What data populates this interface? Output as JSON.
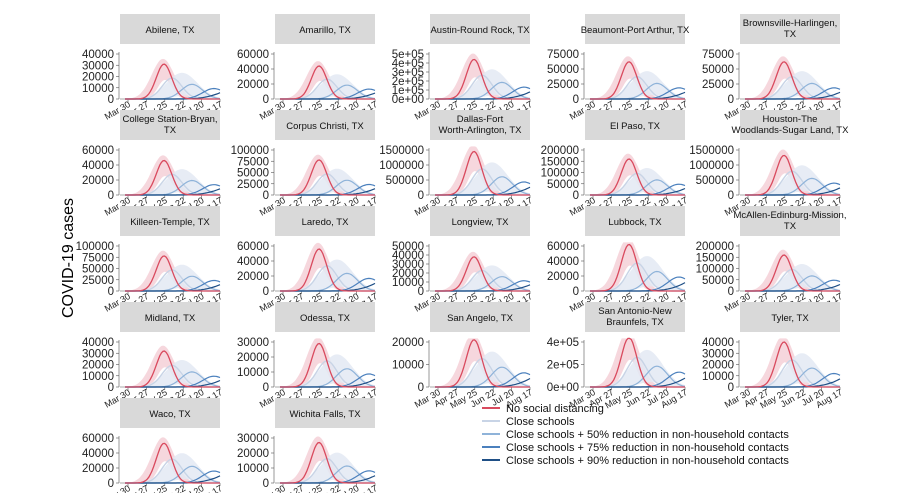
{
  "figure": {
    "ylabel": "COVID-19 cases",
    "xticks": [
      "Mar 30",
      "Apr 27",
      "May 25",
      "Jun 22",
      "Jul 20",
      "Aug 17"
    ],
    "colors": {
      "no_distancing": "#d94a5e",
      "no_distancing_band": "#f4cdd4",
      "close_schools": "#c8d4e6",
      "close_schools_band": "#e3e9f3",
      "s50": "#8fb3d9",
      "s75": "#4b80bd",
      "s90": "#1f4f86",
      "strip": "#d9d9d9"
    }
  },
  "legend": [
    {
      "label": "No social distancing",
      "color": "#d94a5e"
    },
    {
      "label": "Close schools",
      "color": "#c8d4e6"
    },
    {
      "label": "Close schools + 50% reduction in non-household contacts",
      "color": "#8fb3d9"
    },
    {
      "label": "Close schools + 75% reduction in non-household contacts",
      "color": "#4b80bd"
    },
    {
      "label": "Close schools + 90% reduction in non-household contacts",
      "color": "#1f4f86"
    }
  ],
  "chart_data": [
    {
      "type": "line",
      "title": [
        "Abilene, TX"
      ],
      "yticks": [
        "0",
        "10000",
        "20000",
        "30000",
        "40000"
      ],
      "ymax": 40000,
      "peak": 31000,
      "xlabel": "",
      "ylabel": ""
    },
    {
      "type": "line",
      "title": [
        "Amarillo, TX"
      ],
      "yticks": [
        "0",
        "20000",
        "40000",
        "60000"
      ],
      "ymax": 60000,
      "peak": 44000,
      "xlabel": "",
      "ylabel": ""
    },
    {
      "type": "line",
      "title": [
        "Austin-Round Rock, TX"
      ],
      "yticks": [
        "0e+00",
        "1e+05",
        "2e+05",
        "3e+05",
        "4e+05",
        "5e+05"
      ],
      "ymax": 500000,
      "peak": 440000,
      "xlabel": "",
      "ylabel": ""
    },
    {
      "type": "line",
      "title": [
        "Beaumont-Port Arthur, TX"
      ],
      "yticks": [
        "0",
        "25000",
        "50000",
        "75000"
      ],
      "ymax": 75000,
      "peak": 62000,
      "xlabel": "",
      "ylabel": ""
    },
    {
      "type": "line",
      "title": [
        "Brownsville-Harlingen,",
        "TX"
      ],
      "yticks": [
        "0",
        "25000",
        "50000",
        "75000"
      ],
      "ymax": 75000,
      "peak": 62000,
      "xlabel": "",
      "ylabel": ""
    },
    {
      "type": "line",
      "title": [
        "College Station-Bryan,",
        "TX"
      ],
      "yticks": [
        "0",
        "20000",
        "40000",
        "60000"
      ],
      "ymax": 60000,
      "peak": 46000,
      "xlabel": "",
      "ylabel": ""
    },
    {
      "type": "line",
      "title": [
        "Corpus Christi, TX"
      ],
      "yticks": [
        "0",
        "25000",
        "50000",
        "75000",
        "100000"
      ],
      "ymax": 100000,
      "peak": 78000,
      "xlabel": "",
      "ylabel": ""
    },
    {
      "type": "line",
      "title": [
        "Dallas-Fort",
        "Worth-Arlington, TX"
      ],
      "yticks": [
        "0",
        "500000",
        "1000000",
        "1500000"
      ],
      "ymax": 1500000,
      "peak": 1450000,
      "xlabel": "",
      "ylabel": ""
    },
    {
      "type": "line",
      "title": [
        "El Paso, TX"
      ],
      "yticks": [
        "0",
        "50000",
        "100000",
        "150000",
        "200000"
      ],
      "ymax": 200000,
      "peak": 160000,
      "xlabel": "",
      "ylabel": ""
    },
    {
      "type": "line",
      "title": [
        "Houston-The",
        "Woodlands-Sugar Land, TX"
      ],
      "yticks": [
        "0",
        "500000",
        "1000000",
        "1500000"
      ],
      "ymax": 1500000,
      "peak": 1320000,
      "xlabel": "",
      "ylabel": ""
    },
    {
      "type": "line",
      "title": [
        "Killeen-Temple, TX"
      ],
      "yticks": [
        "0",
        "25000",
        "50000",
        "75000",
        "100000"
      ],
      "ymax": 100000,
      "peak": 78000,
      "xlabel": "",
      "ylabel": ""
    },
    {
      "type": "line",
      "title": [
        "Laredo, TX"
      ],
      "yticks": [
        "0",
        "20000",
        "40000",
        "60000"
      ],
      "ymax": 60000,
      "peak": 56000,
      "xlabel": "",
      "ylabel": ""
    },
    {
      "type": "line",
      "title": [
        "Longview, TX"
      ],
      "yticks": [
        "0",
        "10000",
        "20000",
        "30000",
        "40000",
        "50000"
      ],
      "ymax": 50000,
      "peak": 38000,
      "xlabel": "",
      "ylabel": ""
    },
    {
      "type": "line",
      "title": [
        "Lubbock, TX"
      ],
      "yticks": [
        "0",
        "20000",
        "40000",
        "60000"
      ],
      "ymax": 60000,
      "peak": 62000,
      "xlabel": "",
      "ylabel": ""
    },
    {
      "type": "line",
      "title": [
        "McAllen-Edinburg-Mission,",
        "TX"
      ],
      "yticks": [
        "0",
        "50000",
        "100000",
        "150000",
        "200000"
      ],
      "ymax": 200000,
      "peak": 160000,
      "xlabel": "",
      "ylabel": ""
    },
    {
      "type": "line",
      "title": [
        "Midland, TX"
      ],
      "yticks": [
        "0",
        "10000",
        "20000",
        "30000",
        "40000"
      ],
      "ymax": 40000,
      "peak": 32000,
      "xlabel": "",
      "ylabel": ""
    },
    {
      "type": "line",
      "title": [
        "Odessa, TX"
      ],
      "yticks": [
        "0",
        "10000",
        "20000",
        "30000"
      ],
      "ymax": 30000,
      "peak": 29000,
      "xlabel": "",
      "ylabel": ""
    },
    {
      "type": "line",
      "title": [
        "San Angelo, TX"
      ],
      "yticks": [
        "0",
        "10000",
        "20000"
      ],
      "ymax": 20000,
      "peak": 21000,
      "xlabel": "",
      "ylabel": ""
    },
    {
      "type": "line",
      "title": [
        "San Antonio-New",
        "Braunfels, TX"
      ],
      "yticks": [
        "0e+00",
        "2e+05",
        "4e+05"
      ],
      "ymax": 400000,
      "peak": 440000,
      "xlabel": "",
      "ylabel": ""
    },
    {
      "type": "line",
      "title": [
        "Tyler, TX"
      ],
      "yticks": [
        "0",
        "10000",
        "20000",
        "30000",
        "40000"
      ],
      "ymax": 40000,
      "peak": 40000,
      "xlabel": "",
      "ylabel": ""
    },
    {
      "type": "line",
      "title": [
        "Waco, TX"
      ],
      "yticks": [
        "0",
        "20000",
        "40000",
        "60000"
      ],
      "ymax": 60000,
      "peak": 53000,
      "xlabel": "",
      "ylabel": ""
    },
    {
      "type": "line",
      "title": [
        "Wichita Falls, TX"
      ],
      "yticks": [
        "0",
        "10000",
        "20000",
        "30000"
      ],
      "ymax": 30000,
      "peak": 27000,
      "xlabel": "",
      "ylabel": ""
    }
  ]
}
